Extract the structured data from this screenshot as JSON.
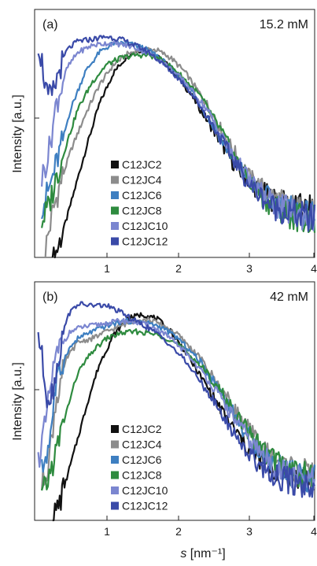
{
  "chart_data": [
    {
      "type": "line",
      "panel_label": "(a)",
      "annotation": "15.2 mM",
      "ylabel": "Intensity [a.u.]",
      "xlabel": "",
      "xlim": [
        0.1,
        4.0
      ],
      "xticks": [
        "1",
        "2",
        "3",
        "4"
      ],
      "yscale": "log",
      "grid": false,
      "legend_position": "center-left",
      "series": [
        {
          "name": "C12JC2",
          "color": "#111111",
          "x": [
            0.35,
            0.45,
            0.55,
            0.7,
            0.85,
            1.0,
            1.2,
            1.4,
            1.55,
            1.7,
            1.9,
            2.1,
            2.3,
            2.6,
            2.9,
            3.2,
            3.5,
            3.8,
            4.0
          ],
          "y": [
            0.0007,
            0.0012,
            0.0022,
            0.006,
            0.016,
            0.04,
            0.09,
            0.14,
            0.16,
            0.15,
            0.12,
            0.08,
            0.048,
            0.02,
            0.008,
            0.0046,
            0.0032,
            0.0028,
            0.0026
          ]
        },
        {
          "name": "C12JC4",
          "color": "#8c8c8c",
          "x": [
            0.25,
            0.35,
            0.45,
            0.6,
            0.8,
            1.0,
            1.2,
            1.4,
            1.6,
            1.8,
            2.0,
            2.2,
            2.5,
            2.8,
            3.1,
            3.4,
            3.7,
            4.0
          ],
          "y": [
            0.001,
            0.0025,
            0.005,
            0.012,
            0.03,
            0.065,
            0.11,
            0.145,
            0.165,
            0.16,
            0.13,
            0.09,
            0.04,
            0.015,
            0.006,
            0.0038,
            0.0028,
            0.0024
          ]
        },
        {
          "name": "C12JC6",
          "color": "#3e7fc1",
          "x": [
            0.2,
            0.3,
            0.45,
            0.6,
            0.8,
            1.0,
            1.2,
            1.4,
            1.6,
            1.8,
            2.0,
            2.3,
            2.6,
            2.9,
            3.2,
            3.5,
            3.8,
            4.0
          ],
          "y": [
            0.003,
            0.0045,
            0.012,
            0.035,
            0.09,
            0.15,
            0.19,
            0.19,
            0.17,
            0.14,
            0.1,
            0.055,
            0.022,
            0.009,
            0.0045,
            0.003,
            0.0024,
            0.0022
          ]
        },
        {
          "name": "C12JC8",
          "color": "#2e8b3f",
          "x": [
            0.2,
            0.3,
            0.4,
            0.55,
            0.7,
            0.9,
            1.1,
            1.3,
            1.5,
            1.7,
            1.9,
            2.1,
            2.4,
            2.7,
            3.0,
            3.3,
            3.6,
            3.9,
            4.0
          ],
          "y": [
            0.002,
            0.003,
            0.006,
            0.015,
            0.035,
            0.07,
            0.11,
            0.13,
            0.14,
            0.14,
            0.12,
            0.09,
            0.05,
            0.02,
            0.007,
            0.0035,
            0.0025,
            0.0021,
            0.002
          ]
        },
        {
          "name": "C12JC10",
          "color": "#7b86d0",
          "x": [
            0.2,
            0.3,
            0.4,
            0.55,
            0.7,
            0.9,
            1.1,
            1.3,
            1.5,
            1.7,
            1.9,
            2.2,
            2.5,
            2.8,
            3.1,
            3.4,
            3.7,
            4.0
          ],
          "y": [
            0.006,
            0.012,
            0.04,
            0.1,
            0.15,
            0.18,
            0.19,
            0.185,
            0.17,
            0.145,
            0.115,
            0.07,
            0.035,
            0.013,
            0.0055,
            0.0032,
            0.0025,
            0.0022
          ]
        },
        {
          "name": "C12JC12",
          "color": "#3a4aa8",
          "x": [
            0.15,
            0.2,
            0.28,
            0.35,
            0.45,
            0.55,
            0.7,
            0.9,
            1.1,
            1.3,
            1.5,
            1.7,
            1.9,
            2.2,
            2.5,
            2.8,
            3.1,
            3.4,
            3.7,
            4.0
          ],
          "y": [
            0.2,
            0.12,
            0.045,
            0.05,
            0.1,
            0.16,
            0.2,
            0.21,
            0.225,
            0.21,
            0.18,
            0.15,
            0.11,
            0.065,
            0.03,
            0.012,
            0.005,
            0.003,
            0.0024,
            0.0021
          ]
        }
      ]
    },
    {
      "type": "line",
      "panel_label": "(b)",
      "annotation": "42 mM",
      "ylabel": "Intensity [a.u.]",
      "xlabel": "s [nm⁻¹]",
      "xlabel_italic": "s",
      "xlabel_rest": " [nm⁻¹]",
      "xlim": [
        0.1,
        4.0
      ],
      "xticks": [
        "1",
        "2",
        "3",
        "4"
      ],
      "yscale": "log",
      "grid": false,
      "legend_position": "bottom-left",
      "series": [
        {
          "name": "C12JC2",
          "color": "#111111",
          "x": [
            0.35,
            0.45,
            0.55,
            0.7,
            0.85,
            1.0,
            1.2,
            1.4,
            1.6,
            1.8,
            2.0,
            2.2,
            2.5,
            2.8,
            3.1,
            3.4,
            3.7,
            4.0
          ],
          "y": [
            0.0008,
            0.0013,
            0.0025,
            0.007,
            0.02,
            0.05,
            0.11,
            0.17,
            0.19,
            0.17,
            0.12,
            0.07,
            0.028,
            0.011,
            0.005,
            0.0032,
            0.0026,
            0.0024
          ]
        },
        {
          "name": "C12JC4",
          "color": "#8c8c8c",
          "x": [
            0.2,
            0.3,
            0.4,
            0.55,
            0.7,
            0.9,
            1.1,
            1.3,
            1.5,
            1.7,
            1.9,
            2.1,
            2.4,
            2.7,
            3.0,
            3.3,
            3.6,
            3.9,
            4.0
          ],
          "y": [
            0.002,
            0.004,
            0.02,
            0.06,
            0.09,
            0.1,
            0.12,
            0.14,
            0.16,
            0.165,
            0.14,
            0.11,
            0.06,
            0.026,
            0.011,
            0.005,
            0.0034,
            0.0027,
            0.0026
          ]
        },
        {
          "name": "C12JC6",
          "color": "#3e7fc1",
          "x": [
            0.2,
            0.3,
            0.4,
            0.55,
            0.7,
            0.9,
            1.1,
            1.3,
            1.5,
            1.7,
            1.9,
            2.1,
            2.4,
            2.7,
            3.0,
            3.3,
            3.6,
            3.9,
            4.0
          ],
          "y": [
            0.003,
            0.006,
            0.03,
            0.07,
            0.1,
            0.12,
            0.14,
            0.155,
            0.16,
            0.15,
            0.13,
            0.1,
            0.055,
            0.024,
            0.009,
            0.0045,
            0.003,
            0.0025,
            0.0024
          ]
        },
        {
          "name": "C12JC8",
          "color": "#2e8b3f",
          "x": [
            0.2,
            0.3,
            0.4,
            0.55,
            0.7,
            0.9,
            1.1,
            1.3,
            1.5,
            1.7,
            1.9,
            2.1,
            2.4,
            2.7,
            3.0,
            3.3,
            3.6,
            3.9,
            4.0
          ],
          "y": [
            0.0015,
            0.0025,
            0.005,
            0.015,
            0.04,
            0.07,
            0.1,
            0.115,
            0.12,
            0.115,
            0.105,
            0.085,
            0.05,
            0.024,
            0.01,
            0.005,
            0.0033,
            0.0026,
            0.0025
          ]
        },
        {
          "name": "C12JC10",
          "color": "#7b86d0",
          "x": [
            0.15,
            0.25,
            0.35,
            0.45,
            0.6,
            0.75,
            0.9,
            1.1,
            1.3,
            1.5,
            1.7,
            1.9,
            2.2,
            2.5,
            2.8,
            3.1,
            3.4,
            3.7,
            4.0
          ],
          "y": [
            0.004,
            0.01,
            0.04,
            0.08,
            0.12,
            0.135,
            0.14,
            0.15,
            0.16,
            0.155,
            0.14,
            0.115,
            0.07,
            0.035,
            0.015,
            0.0065,
            0.0035,
            0.0025,
            0.0022
          ]
        },
        {
          "name": "C12JC12",
          "color": "#3a4aa8",
          "x": [
            0.15,
            0.2,
            0.28,
            0.35,
            0.45,
            0.55,
            0.7,
            0.9,
            1.1,
            1.3,
            1.5,
            1.7,
            1.9,
            2.2,
            2.5,
            2.8,
            3.1,
            3.4,
            3.7,
            4.0
          ],
          "y": [
            0.12,
            0.06,
            0.02,
            0.025,
            0.07,
            0.18,
            0.25,
            0.24,
            0.24,
            0.2,
            0.16,
            0.13,
            0.1,
            0.055,
            0.025,
            0.01,
            0.0045,
            0.0027,
            0.0022,
            0.002
          ]
        }
      ]
    }
  ]
}
